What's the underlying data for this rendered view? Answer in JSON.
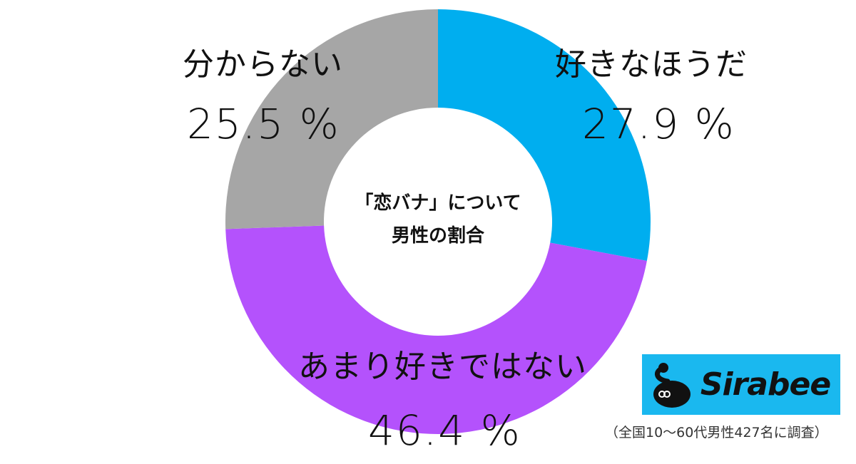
{
  "chart_data": {
    "type": "pie",
    "variant": "donut",
    "title": "「恋バナ」について 男性の割合",
    "categories": [
      "好きなほうだ",
      "あまり好きではない",
      "分からない"
    ],
    "values": [
      27.9,
      46.4,
      25.5
    ],
    "unit": "%",
    "colors": [
      "#00aeef",
      "#b452fc",
      "#a6a6a6"
    ],
    "start_angle": "12 o'clock",
    "direction": "clockwise",
    "legend": "none (direct labels)"
  },
  "center": {
    "line1": "「恋バナ」について",
    "line2": "男性の割合"
  },
  "labels": [
    {
      "category": "好きなほうだ",
      "percent": "27.9 %"
    },
    {
      "category": "あまり好きではない",
      "percent": "46.4 %"
    },
    {
      "category": "分からない",
      "percent": "25.5 %"
    }
  ],
  "brand": {
    "name": "Sirabee",
    "bg_color": "#1ab8ef"
  },
  "footnote": "（全国10～60代男性427名に調査）"
}
